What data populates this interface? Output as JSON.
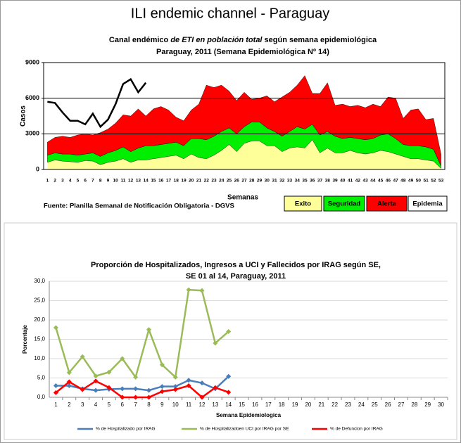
{
  "page_title": "ILI endemic channel - Paraguay",
  "chart_data": [
    {
      "type": "stacked-area",
      "title_parts": [
        "Canal endémico ",
        "de ETI en población total",
        " según semana epidemiológica"
      ],
      "subtitle": "Paraguay, 2011  (Semana Epidemiológica Nº 14)",
      "ylabel": "Casos",
      "xlabel": "Semanas",
      "source": "Fuente: Planilla Semanal de Notificación Obligatoria - DGVS",
      "categories": [
        1,
        2,
        3,
        4,
        5,
        6,
        7,
        8,
        9,
        10,
        11,
        12,
        13,
        14,
        15,
        16,
        17,
        18,
        19,
        20,
        21,
        22,
        23,
        24,
        25,
        26,
        27,
        28,
        29,
        30,
        31,
        32,
        33,
        34,
        35,
        36,
        37,
        38,
        39,
        40,
        41,
        42,
        43,
        44,
        45,
        46,
        47,
        48,
        49,
        50,
        51,
        52,
        53
      ],
      "ylim": [
        0,
        9000
      ],
      "yticks": [
        0,
        3000,
        6000,
        9000
      ],
      "grid": true,
      "series": [
        {
          "name": "Exito",
          "color": "#ffff99",
          "values": [
            600,
            800,
            700,
            650,
            600,
            750,
            700,
            400,
            600,
            700,
            900,
            600,
            800,
            800,
            900,
            1000,
            1100,
            1200,
            900,
            1300,
            1000,
            900,
            1200,
            1600,
            2100,
            1500,
            2200,
            2400,
            2400,
            2000,
            2000,
            1500,
            1800,
            1900,
            1800,
            2500,
            1400,
            1800,
            1400,
            1400,
            1600,
            1400,
            1300,
            1400,
            1600,
            1500,
            1300,
            1100,
            900,
            900,
            800,
            700,
            100
          ]
        },
        {
          "name": "Seguridad",
          "color": "#00ee00",
          "values": [
            600,
            600,
            600,
            650,
            600,
            550,
            700,
            700,
            800,
            900,
            1000,
            900,
            1000,
            1200,
            1100,
            1100,
            1100,
            1100,
            1100,
            1300,
            1600,
            1600,
            1600,
            1600,
            1400,
            1500,
            1400,
            1600,
            1600,
            1500,
            1200,
            1300,
            1400,
            1700,
            1600,
            1300,
            1500,
            1400,
            1400,
            1200,
            1100,
            1200,
            1200,
            1200,
            1300,
            1500,
            1300,
            1000,
            1100,
            1100,
            1100,
            1000,
            200
          ]
        },
        {
          "name": "Alerta",
          "color": "#ff0000",
          "values": [
            1100,
            1300,
            1500,
            1400,
            1700,
            1700,
            1500,
            2000,
            2000,
            2300,
            2700,
            3000,
            3300,
            2500,
            3100,
            3200,
            2800,
            2100,
            2100,
            2400,
            2900,
            4600,
            4100,
            3900,
            3100,
            2800,
            2900,
            1900,
            2000,
            2700,
            2500,
            3300,
            3300,
            3500,
            4500,
            2600,
            3500,
            4100,
            2600,
            2900,
            2600,
            2800,
            2700,
            2900,
            2400,
            3100,
            3400,
            2200,
            3000,
            3100,
            2300,
            2600,
            1000
          ]
        }
      ],
      "extra_legend": {
        "name": "Epidemia",
        "color": "#ffffff"
      },
      "line": {
        "color": "#000000",
        "values": [
          5700,
          5600,
          4800,
          4100,
          4100,
          3800,
          4700,
          3600,
          4200,
          5500,
          7200,
          7600,
          6500,
          7300,
          null,
          null,
          null,
          null,
          null,
          null,
          null,
          null,
          null,
          null,
          null,
          null,
          null,
          null,
          null,
          null,
          null,
          null,
          null,
          null,
          null,
          null,
          null,
          null,
          null,
          null,
          null,
          null,
          null,
          null,
          null,
          null,
          null,
          null,
          null,
          null,
          null,
          null,
          null
        ]
      }
    },
    {
      "type": "line",
      "title_lines": [
        "Proporción de Hospitalizados, Ingresos a UCI y Fallecidos por IRAG según SE,",
        "SE 01 al 14, Paraguay, 2011"
      ],
      "ylabel": "Porcentaje",
      "xlabel": "Semana Epidemiologica",
      "categories": [
        1,
        2,
        3,
        4,
        5,
        6,
        7,
        8,
        9,
        10,
        11,
        12,
        13,
        14,
        15,
        16,
        17,
        18,
        19,
        20,
        21,
        22,
        23,
        24,
        25,
        26,
        27,
        28,
        29,
        30
      ],
      "ylim": [
        0,
        30
      ],
      "yticks": [
        {
          "value": 0,
          "label": "0,0"
        },
        {
          "value": 5,
          "label": "5,0"
        },
        {
          "value": 10,
          "label": "10,0"
        },
        {
          "value": 15,
          "label": "15,0"
        },
        {
          "value": 20,
          "label": "20,0"
        },
        {
          "value": 25,
          "label": "25,0"
        },
        {
          "value": 30,
          "label": "30,0"
        }
      ],
      "grid": true,
      "series": [
        {
          "name": "% de Hospitalizado por IRAG",
          "color": "#4a7ebb",
          "values": [
            3.0,
            3.0,
            2.2,
            1.8,
            2.1,
            2.2,
            2.2,
            1.8,
            2.8,
            2.8,
            4.4,
            3.7,
            2.2,
            5.4,
            null,
            null,
            null,
            null,
            null,
            null,
            null,
            null,
            null,
            null,
            null,
            null,
            null,
            null,
            null,
            null
          ]
        },
        {
          "name": "% de Hospitalizadoen UCI por IRAG por SE",
          "color": "#9bbb59",
          "values": [
            18.0,
            6.4,
            10.5,
            5.5,
            6.5,
            10.0,
            5.2,
            17.5,
            8.4,
            5.2,
            27.8,
            27.6,
            14.0,
            17.0,
            null,
            null,
            null,
            null,
            null,
            null,
            null,
            null,
            null,
            null,
            null,
            null,
            null,
            null,
            null,
            null
          ]
        },
        {
          "name": "% de Defuncion por IRAG",
          "color": "#ff0000",
          "values": [
            1.2,
            4.0,
            2.0,
            4.2,
            2.5,
            0.0,
            0.0,
            0.0,
            1.5,
            2.0,
            3.0,
            0.0,
            2.5,
            1.3,
            null,
            null,
            null,
            null,
            null,
            null,
            null,
            null,
            null,
            null,
            null,
            null,
            null,
            null,
            null,
            null
          ]
        }
      ]
    }
  ]
}
